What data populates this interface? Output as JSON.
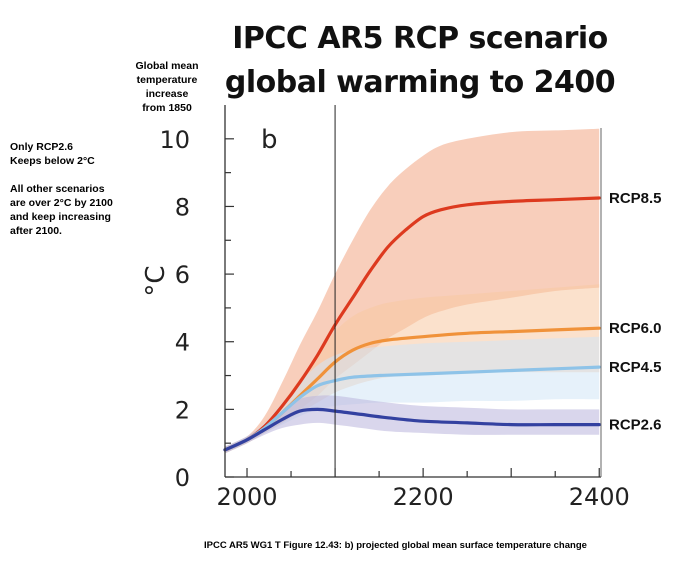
{
  "title_lines": [
    "IPCC AR5 RCP scenario",
    "global warming to 2400"
  ],
  "y_axis_note": [
    "Global mean",
    "temperature",
    "increase",
    "from 1850"
  ],
  "side_note": {
    "line1": "Only RCP2.6",
    "line2": "Keeps below 2°C",
    "line3": "All other scenarios",
    "line4": "are over 2°C by 2100",
    "line5": "and keep increasing",
    "line6": "after 2100."
  },
  "caption": "IPCC AR5 WG1 T Figure 12.43: b) projected global mean surface temperature change",
  "chart_data": {
    "type": "line",
    "panel_label": "b",
    "ylabel": "°C",
    "xlim": [
      1975,
      2402
    ],
    "ylim": [
      0,
      11
    ],
    "x_ticks": [
      2000,
      2200,
      2400
    ],
    "y_ticks": [
      0,
      2,
      4,
      6,
      8,
      10
    ],
    "vertical_marker_x": 2100,
    "grid": false,
    "series": [
      {
        "name": "RCP8.5",
        "color": "#dd3a1f",
        "band_color": "#f2a584",
        "x": [
          1975,
          2000,
          2020,
          2040,
          2060,
          2080,
          2100,
          2120,
          2140,
          2160,
          2180,
          2200,
          2220,
          2250,
          2300,
          2350,
          2400
        ],
        "y": [
          0.8,
          1.1,
          1.5,
          2.1,
          2.8,
          3.6,
          4.5,
          5.3,
          6.1,
          6.8,
          7.3,
          7.7,
          7.9,
          8.05,
          8.15,
          8.2,
          8.25
        ],
        "lower": [
          0.7,
          1.0,
          1.3,
          1.6,
          2.0,
          2.4,
          2.9,
          3.3,
          3.7,
          4.1,
          4.4,
          4.7,
          4.9,
          5.1,
          5.3,
          5.5,
          5.6
        ],
        "upper": [
          0.9,
          1.2,
          1.8,
          2.8,
          3.9,
          4.9,
          6.0,
          7.0,
          7.9,
          8.6,
          9.1,
          9.5,
          9.8,
          10.0,
          10.2,
          10.25,
          10.3
        ]
      },
      {
        "name": "RCP6.0",
        "color": "#f0923a",
        "band_color": "#f8c9a2",
        "x": [
          1975,
          2000,
          2020,
          2040,
          2060,
          2080,
          2100,
          2120,
          2140,
          2160,
          2200,
          2250,
          2300,
          2350,
          2400
        ],
        "y": [
          0.8,
          1.1,
          1.45,
          1.9,
          2.4,
          2.9,
          3.4,
          3.75,
          3.95,
          4.05,
          4.15,
          4.25,
          4.3,
          4.35,
          4.4
        ],
        "lower": [
          0.7,
          1.0,
          1.3,
          1.6,
          1.9,
          2.2,
          2.5,
          2.7,
          2.85,
          2.95,
          3.0,
          3.05,
          3.1,
          3.1,
          3.1
        ],
        "upper": [
          0.9,
          1.2,
          1.6,
          2.2,
          2.9,
          3.6,
          4.3,
          4.75,
          5.0,
          5.15,
          5.3,
          5.4,
          5.5,
          5.6,
          5.7
        ]
      },
      {
        "name": "RCP4.5",
        "color": "#8ec3e8",
        "band_color": "#d2e6f5",
        "x": [
          1975,
          2000,
          2020,
          2040,
          2060,
          2080,
          2100,
          2120,
          2150,
          2200,
          2250,
          2300,
          2350,
          2400
        ],
        "y": [
          0.8,
          1.1,
          1.45,
          1.9,
          2.35,
          2.7,
          2.85,
          2.95,
          3.0,
          3.05,
          3.1,
          3.15,
          3.2,
          3.25
        ],
        "lower": [
          0.7,
          1.0,
          1.3,
          1.55,
          1.8,
          2.0,
          2.1,
          2.15,
          2.2,
          2.2,
          2.25,
          2.25,
          2.3,
          2.3
        ],
        "upper": [
          0.9,
          1.2,
          1.6,
          2.2,
          2.8,
          3.3,
          3.6,
          3.75,
          3.85,
          3.95,
          4.0,
          4.05,
          4.1,
          4.15
        ]
      },
      {
        "name": "RCP2.6",
        "color": "#3341a0",
        "band_color": "#b9b4dc",
        "x": [
          1975,
          2000,
          2020,
          2040,
          2060,
          2080,
          2100,
          2130,
          2160,
          2200,
          2250,
          2300,
          2350,
          2400
        ],
        "y": [
          0.8,
          1.1,
          1.4,
          1.7,
          1.95,
          2.0,
          1.95,
          1.85,
          1.75,
          1.65,
          1.6,
          1.55,
          1.55,
          1.55
        ],
        "lower": [
          0.7,
          1.0,
          1.25,
          1.45,
          1.55,
          1.6,
          1.55,
          1.45,
          1.35,
          1.3,
          1.25,
          1.25,
          1.25,
          1.25
        ],
        "upper": [
          0.9,
          1.2,
          1.55,
          1.95,
          2.3,
          2.4,
          2.4,
          2.3,
          2.2,
          2.1,
          2.05,
          2.0,
          2.0,
          2.0
        ]
      }
    ]
  }
}
